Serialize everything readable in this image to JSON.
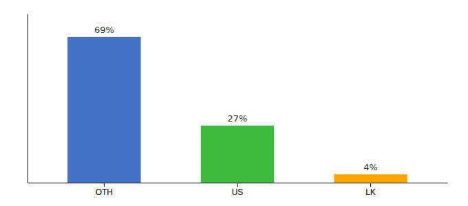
{
  "chart_data": {
    "type": "bar",
    "categories": [
      "OTH",
      "US",
      "LK"
    ],
    "values": [
      69,
      27,
      4
    ],
    "value_labels": [
      "69%",
      "27%",
      "4%"
    ],
    "colors": [
      "#4472C4",
      "#3DBB3D",
      "#FFA500"
    ],
    "ylim": [
      0,
      80
    ],
    "data_labels": true,
    "tick_labels": "x"
  }
}
